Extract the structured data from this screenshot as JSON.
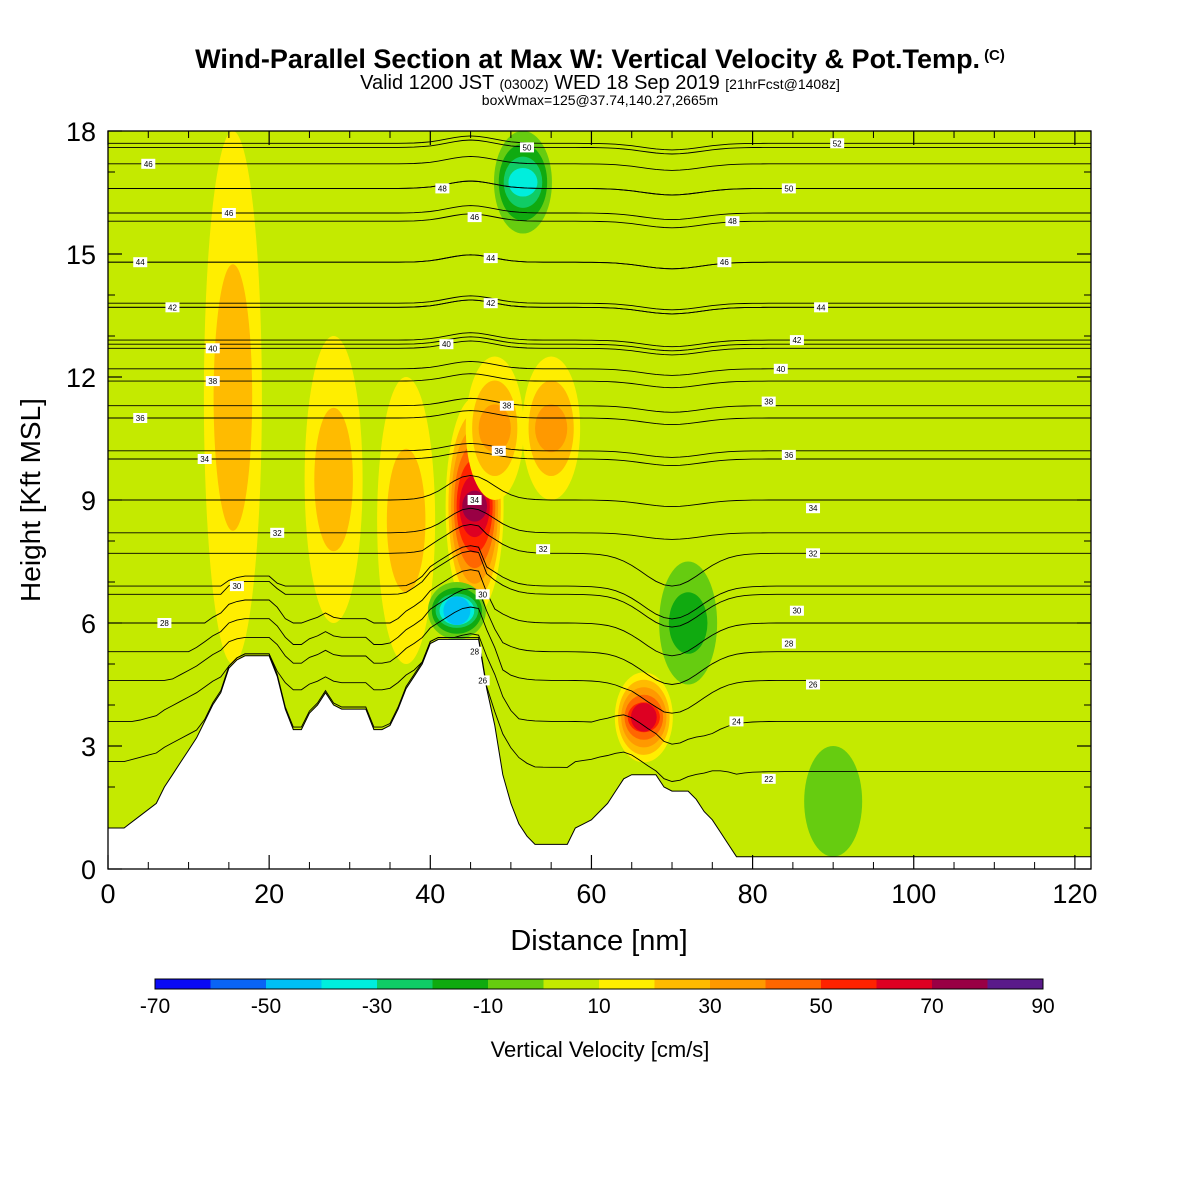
{
  "title": {
    "main": "Wind-Parallel Section at Max W: Vertical Velocity & Pot.Temp.",
    "copyright": "(C)",
    "valid_prefix": "Valid 1200 JST",
    "valid_utc": "(0300Z)",
    "valid_date": "WED 18 Sep 2019",
    "forecast": "[21hrFcst@1408z]",
    "box": "boxWmax=125@37.74,140.27,2665m"
  },
  "colors": {
    "w_levels": [
      "#0a0af5",
      "#0a64f5",
      "#00c0f5",
      "#00eedd",
      "#10cc66",
      "#10aa10",
      "#66cc10",
      "#c4ea00",
      "#ffee00",
      "#ffbb00",
      "#ff9900",
      "#ff6600",
      "#ff2200",
      "#dd0022",
      "#990044",
      "#5a1a8a"
    ],
    "terrain": "#ffffff",
    "isentrope": "#000000"
  },
  "chart_data": {
    "type": "heatmap",
    "description": "vertical cross-section: shaded vertical velocity, contoured potential temperature",
    "xlabel": "Distance [nm]",
    "ylabel": "Height [Kft MSL]",
    "xlim": [
      0,
      122
    ],
    "ylim": [
      0,
      18
    ],
    "x_ticks": [
      "0",
      "20",
      "40",
      "60",
      "80",
      "100",
      "120"
    ],
    "y_ticks": [
      "0",
      "3",
      "6",
      "9",
      "12",
      "15",
      "18"
    ],
    "colorbar": {
      "label": "Vertical Velocity [cm/s]",
      "tick_labels": [
        "-70",
        "-50",
        "-30",
        "-10",
        "10",
        "30",
        "50",
        "70",
        "90"
      ],
      "boundaries": [
        -70,
        -60,
        -50,
        -40,
        -30,
        -20,
        -10,
        0,
        10,
        20,
        30,
        40,
        50,
        60,
        70,
        80,
        90
      ]
    },
    "terrain_profile": {
      "x": [
        0,
        2,
        4,
        6,
        7,
        8,
        9,
        10,
        11,
        12,
        13,
        14,
        15,
        16,
        17,
        18,
        19,
        20,
        21,
        22,
        23,
        24,
        25,
        26,
        27,
        28,
        29,
        30,
        31,
        32,
        33,
        34,
        35,
        36,
        37,
        38,
        39,
        40,
        41,
        42,
        43,
        44,
        45,
        46,
        47,
        48,
        49,
        50,
        51,
        52,
        53,
        54,
        55,
        56,
        57,
        58,
        59,
        60,
        61,
        62,
        63,
        64,
        65,
        66,
        67,
        68,
        69,
        70,
        71,
        72,
        73,
        74,
        75,
        76,
        77,
        78,
        79,
        80,
        90,
        122
      ],
      "height": [
        1.0,
        1.0,
        1.3,
        1.6,
        2.0,
        2.3,
        2.6,
        2.9,
        3.2,
        3.6,
        4.0,
        4.3,
        4.9,
        5.1,
        5.2,
        5.2,
        5.2,
        5.2,
        4.7,
        3.9,
        3.4,
        3.4,
        3.8,
        4.0,
        4.3,
        4.0,
        3.9,
        3.9,
        3.9,
        3.9,
        3.4,
        3.4,
        3.5,
        3.9,
        4.4,
        4.7,
        5.0,
        5.5,
        5.6,
        5.6,
        5.6,
        5.6,
        5.6,
        5.6,
        4.4,
        3.5,
        2.3,
        1.6,
        1.1,
        0.8,
        0.6,
        0.6,
        0.6,
        0.6,
        0.6,
        1.0,
        1.1,
        1.2,
        1.4,
        1.6,
        1.9,
        2.2,
        2.3,
        2.3,
        2.3,
        2.3,
        2.0,
        1.9,
        1.9,
        1.9,
        1.7,
        1.4,
        1.2,
        0.9,
        0.6,
        0.3,
        0.3,
        0.3,
        0.3,
        0.3
      ]
    },
    "vertical_velocity_features": [
      {
        "x": 45.5,
        "z_bottom": 6.2,
        "z_top": 11.5,
        "peak_cm_s": 75,
        "kind": "updraft"
      },
      {
        "x": 66.5,
        "z_bottom": 2.6,
        "z_top": 4.8,
        "peak_cm_s": 60,
        "kind": "updraft"
      },
      {
        "x": 48.0,
        "z_bottom": 9.0,
        "z_top": 12.5,
        "peak_cm_s": 35,
        "kind": "updraft"
      },
      {
        "x": 15.5,
        "z_bottom": 5.0,
        "z_top": 18.0,
        "peak_cm_s": 25,
        "kind": "updraft"
      },
      {
        "x": 28.0,
        "z_bottom": 6.0,
        "z_top": 13.0,
        "peak_cm_s": 25,
        "kind": "updraft"
      },
      {
        "x": 37.0,
        "z_bottom": 5.0,
        "z_top": 12.0,
        "peak_cm_s": 20,
        "kind": "updraft"
      },
      {
        "x": 55.0,
        "z_bottom": 9.0,
        "z_top": 12.5,
        "peak_cm_s": 30,
        "kind": "updraft"
      },
      {
        "x": 43.3,
        "z_bottom": 5.6,
        "z_top": 7.0,
        "peak_cm_s": -40,
        "kind": "downdraft"
      },
      {
        "x": 51.5,
        "z_bottom": 15.5,
        "z_top": 18.0,
        "peak_cm_s": -35,
        "kind": "downdraft"
      },
      {
        "x": 72.0,
        "z_bottom": 4.5,
        "z_top": 7.5,
        "peak_cm_s": -15,
        "kind": "downdraft"
      },
      {
        "x": 90.0,
        "z_bottom": 0.3,
        "z_top": 3.0,
        "peak_cm_s": -5,
        "kind": "downdraft"
      }
    ],
    "isentrope_labels": [
      {
        "x": 5,
        "z": 17.2,
        "text": "46"
      },
      {
        "x": 15,
        "z": 16.0,
        "text": "46"
      },
      {
        "x": 4,
        "z": 14.8,
        "text": "44"
      },
      {
        "x": 8,
        "z": 13.7,
        "text": "42"
      },
      {
        "x": 13,
        "z": 12.7,
        "text": "40"
      },
      {
        "x": 13,
        "z": 11.9,
        "text": "38"
      },
      {
        "x": 4,
        "z": 11.0,
        "text": "36"
      },
      {
        "x": 12,
        "z": 10.0,
        "text": "34"
      },
      {
        "x": 21,
        "z": 8.2,
        "text": "32"
      },
      {
        "x": 16,
        "z": 6.9,
        "text": "30"
      },
      {
        "x": 7,
        "z": 6.0,
        "text": "28"
      },
      {
        "x": 52,
        "z": 17.6,
        "text": "50"
      },
      {
        "x": 41.5,
        "z": 16.6,
        "text": "48"
      },
      {
        "x": 45.5,
        "z": 15.9,
        "text": "46"
      },
      {
        "x": 47.5,
        "z": 14.9,
        "text": "44"
      },
      {
        "x": 47.5,
        "z": 13.8,
        "text": "42"
      },
      {
        "x": 42,
        "z": 12.8,
        "text": "40"
      },
      {
        "x": 49.5,
        "z": 11.3,
        "text": "38"
      },
      {
        "x": 48.5,
        "z": 10.2,
        "text": "36"
      },
      {
        "x": 45.5,
        "z": 9.0,
        "text": "34"
      },
      {
        "x": 54,
        "z": 7.8,
        "text": "32"
      },
      {
        "x": 46.5,
        "z": 6.7,
        "text": "30"
      },
      {
        "x": 45.5,
        "z": 5.3,
        "text": "28"
      },
      {
        "x": 46.5,
        "z": 4.6,
        "text": "26"
      },
      {
        "x": 90.5,
        "z": 17.7,
        "text": "52"
      },
      {
        "x": 84.5,
        "z": 16.6,
        "text": "50"
      },
      {
        "x": 77.5,
        "z": 15.8,
        "text": "48"
      },
      {
        "x": 76.5,
        "z": 14.8,
        "text": "46"
      },
      {
        "x": 88.5,
        "z": 13.7,
        "text": "44"
      },
      {
        "x": 85.5,
        "z": 12.9,
        "text": "42"
      },
      {
        "x": 83.5,
        "z": 12.2,
        "text": "40"
      },
      {
        "x": 82,
        "z": 11.4,
        "text": "38"
      },
      {
        "x": 84.5,
        "z": 10.1,
        "text": "36"
      },
      {
        "x": 87.5,
        "z": 8.8,
        "text": "34"
      },
      {
        "x": 87.5,
        "z": 7.7,
        "text": "32"
      },
      {
        "x": 85.5,
        "z": 6.3,
        "text": "30"
      },
      {
        "x": 84.5,
        "z": 5.5,
        "text": "28"
      },
      {
        "x": 87.5,
        "z": 4.5,
        "text": "26"
      },
      {
        "x": 78,
        "z": 3.6,
        "text": "24"
      },
      {
        "x": 82,
        "z": 2.2,
        "text": "22"
      }
    ]
  }
}
